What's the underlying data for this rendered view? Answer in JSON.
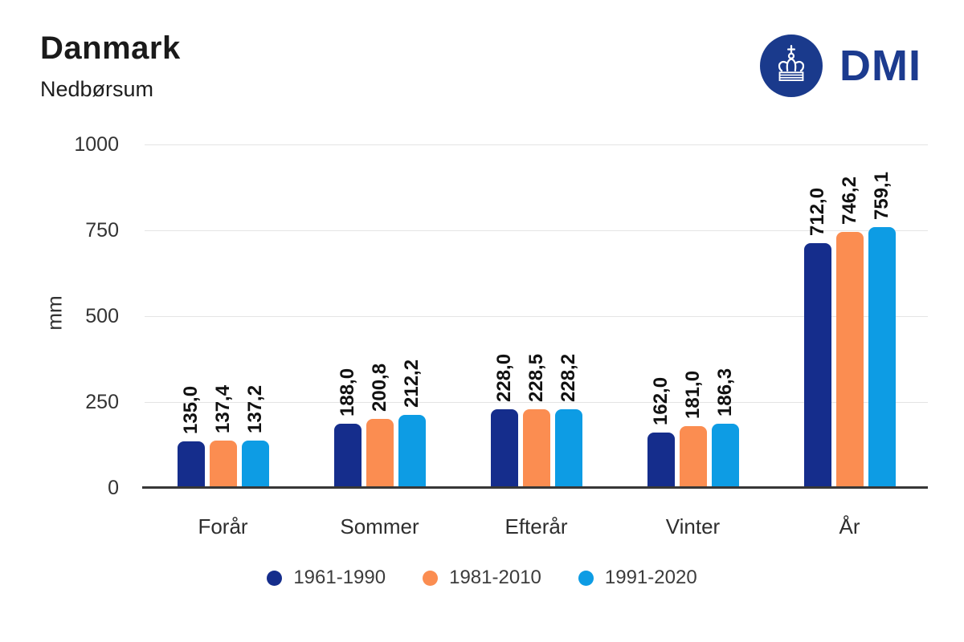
{
  "header": {
    "title": "Danmark",
    "subtitle": "Nedbørsum",
    "logo_text": "DMI"
  },
  "colors": {
    "series": [
      "#152d8c",
      "#fb8d51",
      "#0d9ce4"
    ],
    "logo_blue": "#1a3a8c",
    "logo_text_blue": "#1c3b8f",
    "grid": "#e4e4e4",
    "axis": "#373737",
    "tick_text": "#333333",
    "value_text": "#111111",
    "category_text": "#2e2e2e",
    "legend_text": "#3c3c3c"
  },
  "icons": {
    "crown": "crown-icon"
  },
  "chart_data": {
    "type": "bar",
    "title": "Danmark",
    "subtitle": "Nedbørsum",
    "xlabel": "",
    "ylabel": "mm",
    "ylim": [
      0,
      1000
    ],
    "yticks": [
      0,
      250,
      500,
      750,
      1000
    ],
    "grid": true,
    "legend_position": "bottom",
    "decimal_separator": ",",
    "categories": [
      "Forår",
      "Sommer",
      "Efterår",
      "Vinter",
      "År"
    ],
    "series": [
      {
        "name": "1961-1990",
        "color": "#152d8c",
        "values": [
          135.0,
          188.0,
          228.0,
          162.0,
          712.0
        ],
        "labels": [
          "135,0",
          "188,0",
          "228,0",
          "162,0",
          "712,0"
        ]
      },
      {
        "name": "1981-2010",
        "color": "#fb8d51",
        "values": [
          137.4,
          200.8,
          228.5,
          181.0,
          746.2
        ],
        "labels": [
          "137,4",
          "200,8",
          "228,5",
          "181,0",
          "746,2"
        ]
      },
      {
        "name": "1991-2020",
        "color": "#0d9ce4",
        "values": [
          137.2,
          212.2,
          228.2,
          186.3,
          759.1
        ],
        "labels": [
          "137,2",
          "212,2",
          "228,2",
          "186,3",
          "759,1"
        ]
      }
    ]
  }
}
